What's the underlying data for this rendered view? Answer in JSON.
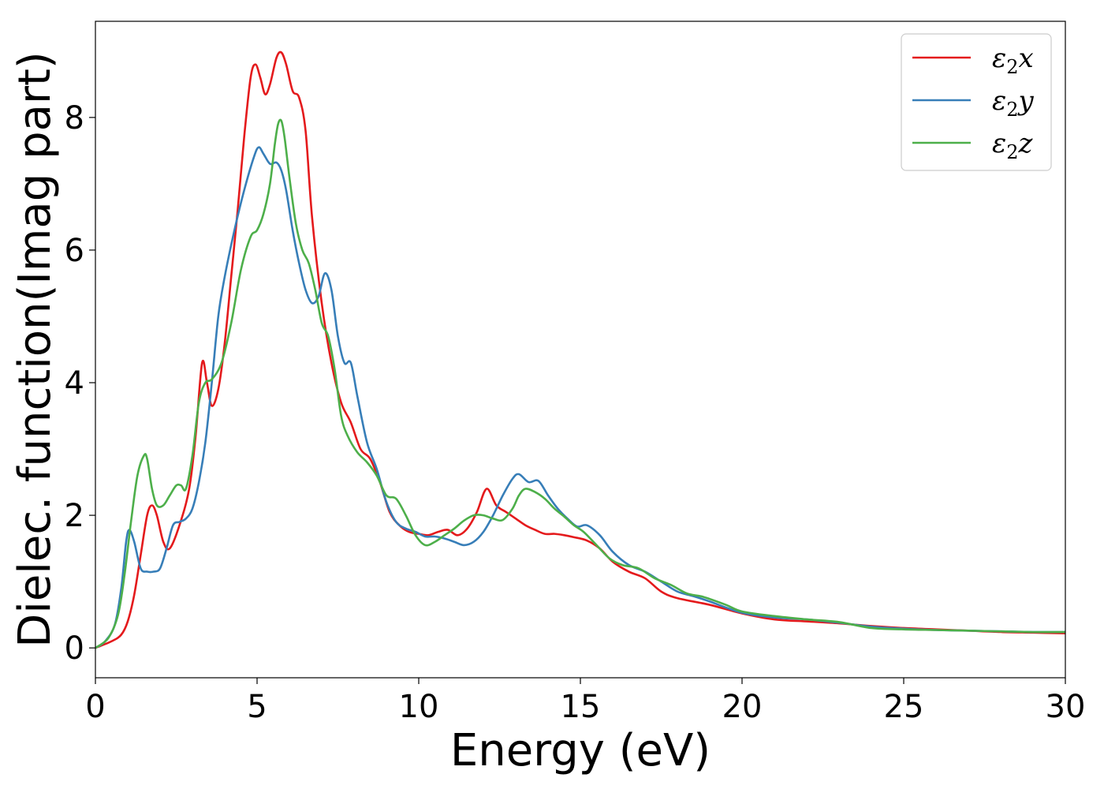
{
  "chart_data": {
    "type": "line",
    "xlabel": "Energy (eV)",
    "ylabel": "Dielec. function(Imag part)",
    "xlim": [
      0,
      30
    ],
    "ylim": [
      -0.45,
      9.45
    ],
    "xticks": [
      0,
      5,
      10,
      15,
      20,
      25,
      30
    ],
    "yticks": [
      0,
      2,
      4,
      6,
      8
    ],
    "grid": false,
    "legend": "top-right",
    "series": [
      {
        "name": "ε₂x",
        "symbol": "ε",
        "sub": "2",
        "suffix": "x",
        "color": "#e41a1c",
        "x": [
          0,
          0.5,
          0.8,
          1.0,
          1.2,
          1.4,
          1.6,
          1.75,
          1.9,
          2.1,
          2.3,
          2.6,
          2.9,
          3.1,
          3.3,
          3.45,
          3.6,
          3.8,
          4.0,
          4.2,
          4.4,
          4.6,
          4.8,
          4.95,
          5.1,
          5.25,
          5.4,
          5.6,
          5.75,
          5.9,
          6.1,
          6.3,
          6.5,
          6.7,
          7.0,
          7.3,
          7.6,
          7.9,
          8.2,
          8.5,
          8.8,
          9.1,
          9.4,
          9.7,
          10.0,
          10.3,
          10.6,
          10.9,
          11.2,
          11.5,
          11.8,
          12.1,
          12.4,
          12.7,
          13.0,
          13.3,
          13.6,
          13.9,
          14.2,
          14.5,
          14.8,
          15.2,
          15.6,
          16.0,
          16.5,
          17.0,
          17.5,
          18.0,
          19.0,
          20.0,
          21.0,
          22.0,
          23.0,
          24.0,
          25.0,
          26.0,
          27.0,
          28.0,
          29.0,
          30.0
        ],
        "y": [
          0,
          0.1,
          0.2,
          0.4,
          0.8,
          1.4,
          2.0,
          2.15,
          2.0,
          1.6,
          1.5,
          1.85,
          2.4,
          3.2,
          4.3,
          4.0,
          3.65,
          3.9,
          4.6,
          5.6,
          6.6,
          7.7,
          8.6,
          8.8,
          8.6,
          8.35,
          8.5,
          8.9,
          8.98,
          8.8,
          8.4,
          8.3,
          7.8,
          6.5,
          5.2,
          4.3,
          3.7,
          3.4,
          3.0,
          2.85,
          2.5,
          2.05,
          1.85,
          1.75,
          1.72,
          1.7,
          1.75,
          1.78,
          1.7,
          1.8,
          2.05,
          2.4,
          2.15,
          2.05,
          1.95,
          1.85,
          1.78,
          1.72,
          1.72,
          1.7,
          1.67,
          1.62,
          1.5,
          1.3,
          1.15,
          1.05,
          0.85,
          0.75,
          0.65,
          0.52,
          0.43,
          0.4,
          0.37,
          0.33,
          0.3,
          0.28,
          0.26,
          0.24,
          0.23,
          0.22
        ]
      },
      {
        "name": "ε₂y",
        "symbol": "ε",
        "sub": "2",
        "suffix": "y",
        "color": "#377eb8",
        "x": [
          0,
          0.3,
          0.6,
          0.8,
          0.95,
          1.05,
          1.2,
          1.4,
          1.6,
          1.8,
          2.0,
          2.2,
          2.4,
          2.6,
          2.8,
          3.0,
          3.2,
          3.4,
          3.6,
          3.8,
          4.0,
          4.3,
          4.6,
          4.9,
          5.05,
          5.2,
          5.4,
          5.6,
          5.75,
          5.9,
          6.1,
          6.3,
          6.5,
          6.7,
          6.9,
          7.1,
          7.3,
          7.5,
          7.7,
          7.9,
          8.1,
          8.4,
          8.7,
          9.0,
          9.3,
          9.6,
          9.9,
          10.2,
          10.5,
          10.8,
          11.1,
          11.4,
          11.7,
          12.0,
          12.3,
          12.6,
          12.9,
          13.1,
          13.4,
          13.7,
          14.0,
          14.3,
          14.6,
          14.9,
          15.2,
          15.6,
          16.0,
          16.5,
          17.0,
          17.5,
          18.0,
          18.5,
          19.0,
          20.0,
          21.0,
          22.0,
          23.0,
          24.0,
          25.0,
          26.0,
          27.0,
          28.0,
          29.0,
          30.0
        ],
        "y": [
          0,
          0.1,
          0.35,
          0.9,
          1.6,
          1.78,
          1.6,
          1.2,
          1.15,
          1.15,
          1.2,
          1.5,
          1.85,
          1.9,
          1.95,
          2.1,
          2.5,
          3.1,
          4.0,
          5.0,
          5.6,
          6.3,
          6.9,
          7.4,
          7.55,
          7.45,
          7.3,
          7.32,
          7.2,
          6.9,
          6.3,
          5.8,
          5.4,
          5.2,
          5.3,
          5.65,
          5.4,
          4.7,
          4.3,
          4.3,
          3.8,
          3.1,
          2.7,
          2.2,
          1.9,
          1.8,
          1.75,
          1.68,
          1.68,
          1.65,
          1.6,
          1.55,
          1.6,
          1.75,
          2.0,
          2.3,
          2.55,
          2.62,
          2.5,
          2.52,
          2.3,
          2.1,
          1.95,
          1.83,
          1.85,
          1.7,
          1.45,
          1.25,
          1.15,
          1.0,
          0.85,
          0.78,
          0.7,
          0.53,
          0.46,
          0.43,
          0.38,
          0.32,
          0.29,
          0.27,
          0.26,
          0.25,
          0.24,
          0.24
        ]
      },
      {
        "name": "ε₂z",
        "symbol": "ε",
        "sub": "2",
        "suffix": "z",
        "color": "#4daf4a",
        "x": [
          0,
          0.4,
          0.7,
          0.9,
          1.1,
          1.3,
          1.5,
          1.6,
          1.75,
          1.9,
          2.1,
          2.3,
          2.5,
          2.65,
          2.8,
          3.0,
          3.2,
          3.4,
          3.6,
          3.9,
          4.2,
          4.5,
          4.8,
          5.0,
          5.2,
          5.4,
          5.55,
          5.65,
          5.75,
          5.85,
          6.0,
          6.2,
          6.4,
          6.6,
          6.8,
          7.0,
          7.2,
          7.4,
          7.6,
          7.8,
          8.1,
          8.4,
          8.7,
          9.0,
          9.3,
          9.6,
          9.9,
          10.2,
          10.5,
          10.8,
          11.1,
          11.4,
          11.7,
          12.0,
          12.3,
          12.6,
          12.9,
          13.1,
          13.3,
          13.6,
          13.9,
          14.2,
          14.5,
          14.8,
          15.1,
          15.5,
          15.9,
          16.3,
          16.8,
          17.3,
          17.8,
          18.3,
          18.8,
          19.5,
          20.0,
          21.0,
          22.0,
          23.0,
          24.0,
          25.0,
          26.0,
          27.0,
          28.0,
          29.0,
          30.0
        ],
        "y": [
          0,
          0.15,
          0.5,
          1.1,
          1.9,
          2.6,
          2.9,
          2.85,
          2.4,
          2.15,
          2.15,
          2.3,
          2.45,
          2.45,
          2.4,
          2.9,
          3.7,
          4.0,
          4.05,
          4.3,
          4.9,
          5.7,
          6.2,
          6.3,
          6.55,
          7.0,
          7.6,
          7.9,
          7.95,
          7.7,
          7.1,
          6.4,
          6.0,
          5.8,
          5.4,
          4.9,
          4.7,
          4.2,
          3.5,
          3.2,
          2.95,
          2.8,
          2.6,
          2.3,
          2.25,
          2.0,
          1.7,
          1.55,
          1.6,
          1.7,
          1.8,
          1.92,
          2.0,
          2.0,
          1.95,
          1.93,
          2.1,
          2.3,
          2.4,
          2.35,
          2.25,
          2.1,
          1.98,
          1.85,
          1.75,
          1.55,
          1.35,
          1.25,
          1.2,
          1.05,
          0.95,
          0.82,
          0.77,
          0.65,
          0.55,
          0.48,
          0.43,
          0.39,
          0.3,
          0.28,
          0.27,
          0.26,
          0.25,
          0.24,
          0.24
        ]
      }
    ]
  }
}
